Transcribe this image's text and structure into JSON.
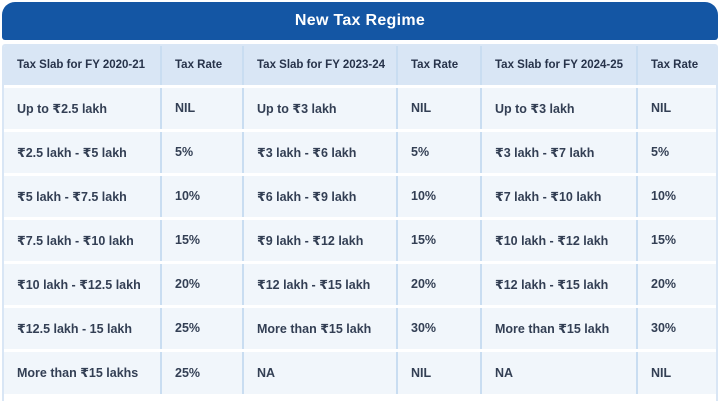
{
  "card": {
    "title": "New Tax Regime"
  },
  "colors": {
    "header_blue": "#1456a4",
    "column_header_bg": "#d9e6f5",
    "cell_bg": "#f1f6fb",
    "separator": "#c9ddf1",
    "title_text": "#ffffff",
    "body_text": "#333f54"
  },
  "chart_data": {
    "type": "table",
    "title": "New Tax Regime",
    "columns": [
      "Tax Slab for FY 2020-21",
      "Tax Rate",
      "Tax Slab for FY 2023-24",
      "Tax Rate",
      "Tax Slab for FY 2024-25",
      "Tax Rate"
    ],
    "rows": [
      [
        "Up to ₹2.5 lakh",
        "NIL",
        "Up to ₹3 lakh",
        "NIL",
        "Up to ₹3 lakh",
        "NIL"
      ],
      [
        "₹2.5 lakh - ₹5 lakh",
        "5%",
        "₹3 lakh - ₹6 lakh",
        "5%",
        "₹3 lakh - ₹7 lakh",
        "5%"
      ],
      [
        "₹5 lakh - ₹7.5 lakh",
        "10%",
        "₹6 lakh - ₹9 lakh",
        "10%",
        "₹7 lakh - ₹10 lakh",
        "10%"
      ],
      [
        "₹7.5 lakh - ₹10 lakh",
        "15%",
        "₹9 lakh - ₹12 lakh",
        "15%",
        "₹10 lakh - ₹12 lakh",
        "15%"
      ],
      [
        "₹10 lakh - ₹12.5 lakh",
        "20%",
        "₹12 lakh - ₹15 lakh",
        "20%",
        "₹12 lakh - ₹15 lakh",
        "20%"
      ],
      [
        "₹12.5 lakh - 15 lakh",
        "25%",
        "More than ₹15 lakh",
        "30%",
        "More than ₹15 lakh",
        "30%"
      ],
      [
        "More than ₹15 lakhs",
        "25%",
        "NA",
        "NIL",
        "NA",
        "NIL"
      ]
    ]
  }
}
